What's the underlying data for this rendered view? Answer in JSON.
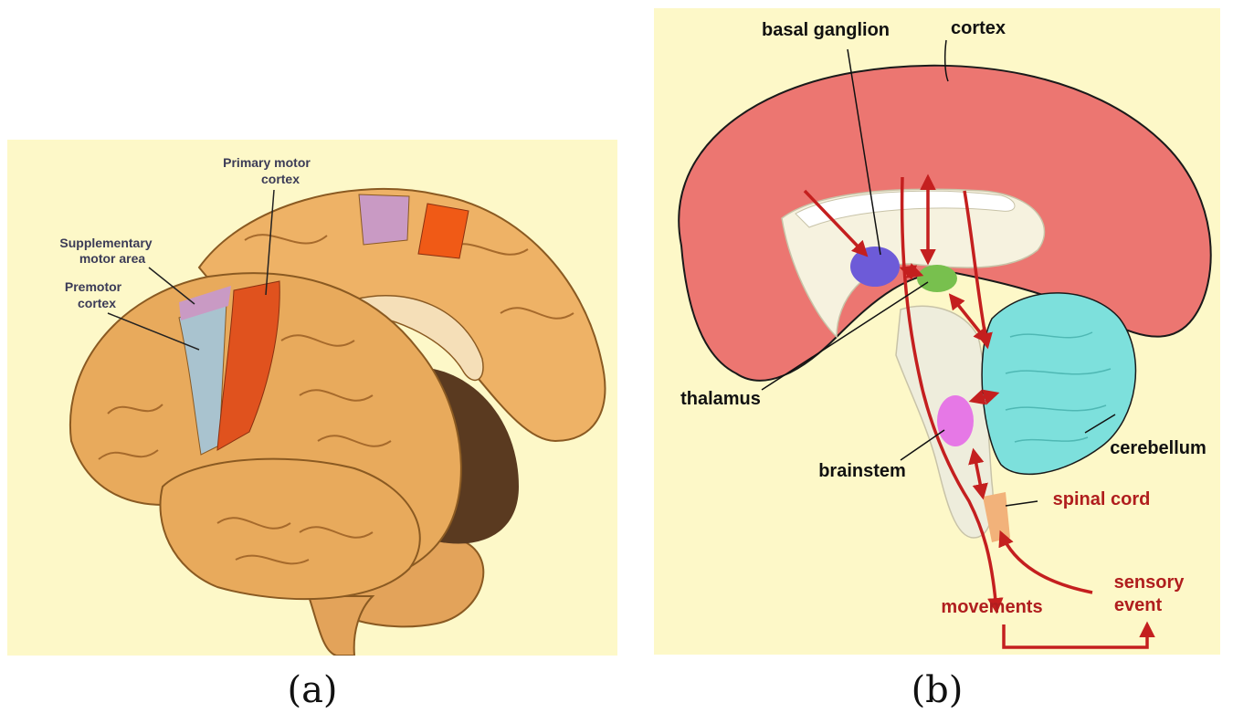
{
  "panel_a": {
    "caption": "(a)",
    "labels": {
      "primary_motor_line1": "Primary motor",
      "primary_motor_line2": "cortex",
      "supplementary_line1": "Supplementary",
      "supplementary_line2": "motor area",
      "premotor_line1": "Premotor",
      "premotor_line2": "cortex"
    },
    "colors": {
      "background": "#fdf8c8",
      "brain": "#e8aa5c",
      "primary_motor": "#e0521e",
      "supplementary": "#c99ac4",
      "premotor": "#a9c3cf"
    }
  },
  "panel_b": {
    "caption": "(b)",
    "labels": {
      "basal_ganglion": "basal ganglion",
      "cortex": "cortex",
      "thalamus": "thalamus",
      "cerebellum": "cerebellum",
      "brainstem": "brainstem",
      "spinal_cord": "spinal cord",
      "sensory_line1": "sensory",
      "sensory_line2": "event",
      "movements": "movements"
    },
    "colors": {
      "background": "#fdf8c8",
      "cortex": "#ec7671",
      "basal_ganglion": "#6d5bd8",
      "thalamus": "#78c04e",
      "cerebellum": "#7de0dc",
      "brainstem_nucleus": "#e678e6",
      "spinal_cord": "#f2b27a",
      "pathway": "#c41f1f"
    }
  }
}
